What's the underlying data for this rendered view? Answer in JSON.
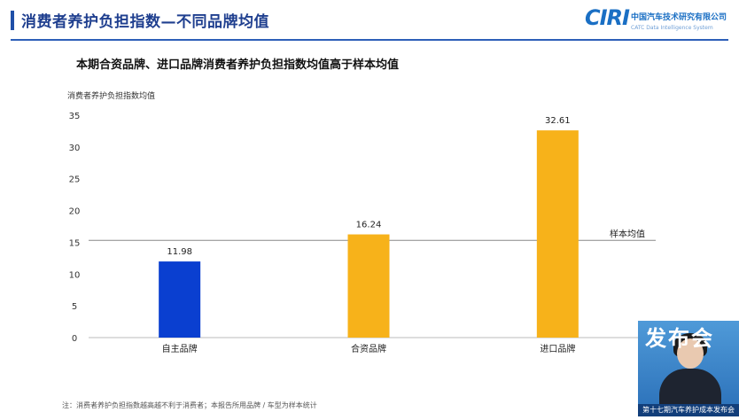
{
  "header": {
    "title": "消费者养护负担指数—不同品牌均值",
    "logo_mark": "CIRI",
    "logo_text": "中国汽车技术研究有限公司",
    "logo_sub": "CATC Data Intelligence System"
  },
  "subtitle": "本期合资品牌、进口品牌消费者养护负担指数均值高于样本均值",
  "chart_data": {
    "type": "bar",
    "ylabel": "消费者养护负担指数均值",
    "categories": [
      "自主品牌",
      "合资品牌",
      "进口品牌"
    ],
    "values": [
      11.98,
      16.24,
      32.61
    ],
    "value_labels": [
      "11.98",
      "16.24",
      "32.61"
    ],
    "colors": [
      "#0a3fd0",
      "#f7b21a",
      "#f7b21a"
    ],
    "ylim": [
      0,
      35
    ],
    "yticks": [
      0,
      5,
      10,
      15,
      20,
      25,
      30,
      35
    ],
    "reference_line": {
      "value": 15.3,
      "label": "样本均值"
    },
    "grid": false
  },
  "footnote": "注：消费者养护负担指数越高越不利于消费者；本报告所用品牌 / 车型为样本统计",
  "inset": {
    "text": "发布会",
    "plate": "第十七期汽车养护成本发布会"
  }
}
